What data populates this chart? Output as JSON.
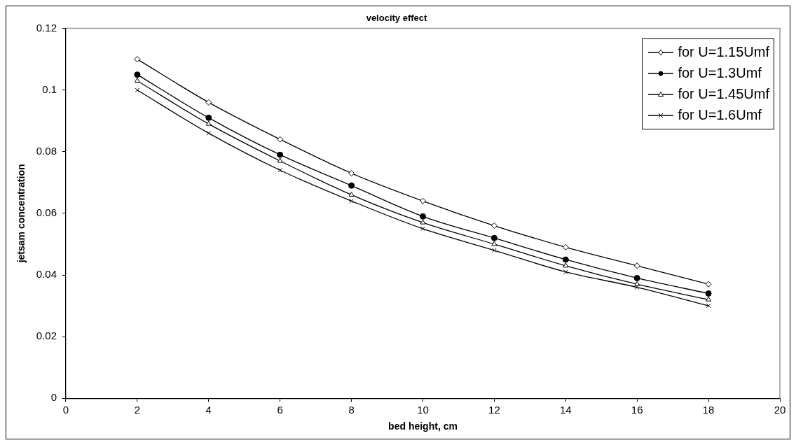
{
  "chart_data": {
    "type": "line",
    "title": "velocity effect",
    "xlabel": "bed height, cm",
    "ylabel": "jetsam concentration",
    "x": [
      2,
      4,
      6,
      8,
      10,
      12,
      14,
      16,
      18
    ],
    "xlim": [
      0,
      20
    ],
    "xticks": [
      0,
      2,
      4,
      6,
      8,
      10,
      12,
      14,
      16,
      18,
      20
    ],
    "ylim": [
      0,
      0.12
    ],
    "yticks": [
      0,
      0.02,
      0.04,
      0.06,
      0.08,
      0.1,
      0.12
    ],
    "grid": false,
    "legend": "top right",
    "line_style": "solid",
    "series": [
      {
        "name": "for U=1.15Umf",
        "color": "#000000",
        "marker": "diamond",
        "values": [
          0.11,
          0.096,
          0.084,
          0.073,
          0.064,
          0.056,
          0.049,
          0.043,
          0.037
        ]
      },
      {
        "name": "for U=1.3Umf",
        "color": "#000000",
        "marker": "circle",
        "values": [
          0.105,
          0.091,
          0.079,
          0.069,
          0.059,
          0.052,
          0.045,
          0.039,
          0.034
        ]
      },
      {
        "name": "for U=1.45Umf",
        "color": "#000000",
        "marker": "triangle",
        "values": [
          0.103,
          0.089,
          0.077,
          0.066,
          0.057,
          0.05,
          0.043,
          0.037,
          0.032
        ]
      },
      {
        "name": "for U=1.6Umf",
        "color": "#000000",
        "marker": "cross",
        "values": [
          0.1,
          0.086,
          0.074,
          0.064,
          0.055,
          0.048,
          0.041,
          0.036,
          0.03
        ]
      }
    ]
  }
}
